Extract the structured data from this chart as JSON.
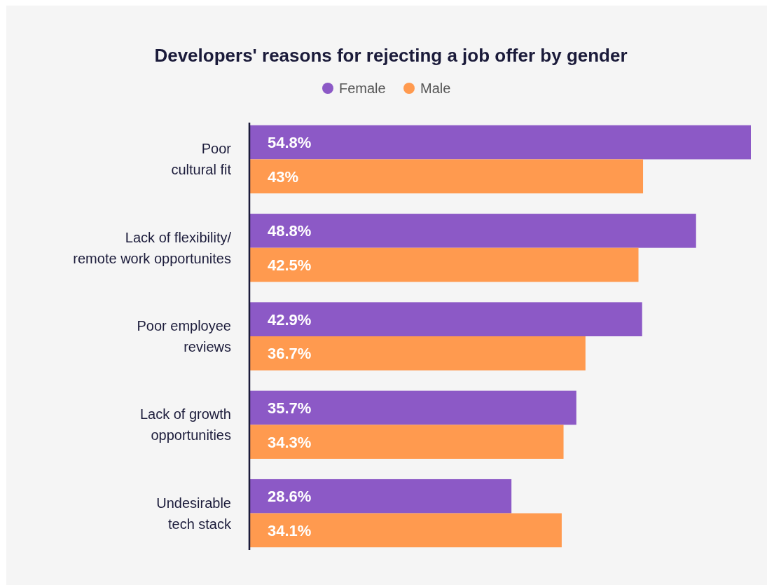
{
  "chart_data": {
    "type": "bar",
    "orientation": "horizontal",
    "title": "Developers' reasons for rejecting a job offer by gender",
    "categories": [
      "Poor\ncultural fit",
      "Lack of flexibility/\nremote work opportunites",
      "Poor employee\nreviews",
      "Lack of growth\nopportunities",
      "Undesirable\ntech stack"
    ],
    "series": [
      {
        "name": "Female",
        "color": "#8c59c6",
        "values": [
          54.8,
          48.8,
          42.9,
          35.7,
          28.6
        ],
        "value_labels": [
          "54.8%",
          "48.8%",
          "42.9%",
          "35.7%",
          "28.6%"
        ]
      },
      {
        "name": "Male",
        "color": "#ff9a4f",
        "values": [
          43,
          42.5,
          36.7,
          34.3,
          34.1
        ],
        "value_labels": [
          "43%",
          "42.5%",
          "36.7%",
          "34.3%",
          "34.1%"
        ]
      }
    ],
    "legend": "top"
  }
}
